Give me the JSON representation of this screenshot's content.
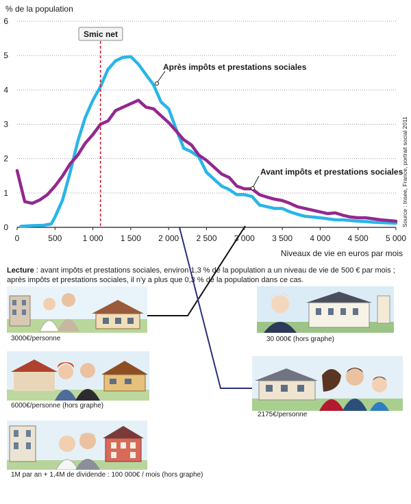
{
  "chart_data": {
    "type": "line",
    "ylabel": "% de la population",
    "xlabel": "Niveaux de vie en euros par mois",
    "xlim": [
      0,
      5000
    ],
    "ylim": [
      0,
      6
    ],
    "xticks": [
      0,
      500,
      1000,
      1500,
      2000,
      2500,
      3000,
      3500,
      4000,
      4500,
      5000
    ],
    "xtick_labels": [
      "0",
      "500",
      "1 000",
      "1 500",
      "2 000",
      "2 500",
      "3 000",
      "3 500",
      "4 000",
      "4 500",
      "5 000"
    ],
    "yticks": [
      0,
      1,
      2,
      3,
      4,
      5,
      6
    ],
    "ytick_labels": [
      "0",
      "1",
      "2",
      "3",
      "4",
      "5",
      "6"
    ],
    "grid": "horizontal dotted",
    "series": [
      {
        "name": "Après impôts et prestations sociales",
        "color": "#29b5e8",
        "x": [
          50,
          200,
          350,
          450,
          500,
          600,
          700,
          800,
          900,
          1000,
          1100,
          1200,
          1300,
          1400,
          1500,
          1600,
          1700,
          1800,
          1900,
          2000,
          2100,
          2200,
          2300,
          2400,
          2500,
          2600,
          2700,
          2800,
          2900,
          3000,
          3100,
          3200,
          3300,
          3400,
          3500,
          3600,
          3700,
          3800,
          3900,
          4000,
          4100,
          4200,
          4300,
          4400,
          4500,
          4600,
          4700,
          4800,
          4900,
          5000
        ],
        "y": [
          0.03,
          0.05,
          0.06,
          0.1,
          0.3,
          0.8,
          1.6,
          2.5,
          3.2,
          3.7,
          4.1,
          4.6,
          4.85,
          4.95,
          4.97,
          4.75,
          4.45,
          4.15,
          3.65,
          3.45,
          2.85,
          2.3,
          2.2,
          2.05,
          1.6,
          1.4,
          1.2,
          1.1,
          0.95,
          0.95,
          0.9,
          0.65,
          0.6,
          0.55,
          0.55,
          0.45,
          0.38,
          0.32,
          0.3,
          0.28,
          0.25,
          0.22,
          0.22,
          0.2,
          0.18,
          0.17,
          0.15,
          0.14,
          0.13,
          0.12
        ]
      },
      {
        "name": "Avant impôts et prestations sociales",
        "color": "#93288e",
        "x": [
          0,
          100,
          200,
          300,
          400,
          500,
          600,
          700,
          800,
          900,
          1000,
          1100,
          1200,
          1300,
          1400,
          1500,
          1600,
          1700,
          1800,
          1900,
          2000,
          2100,
          2200,
          2300,
          2400,
          2500,
          2600,
          2700,
          2800,
          2900,
          3000,
          3100,
          3200,
          3300,
          3400,
          3500,
          3600,
          3700,
          3800,
          3900,
          4000,
          4100,
          4200,
          4300,
          4400,
          4500,
          4600,
          4700,
          4800,
          4900,
          5000
        ],
        "y": [
          1.65,
          0.75,
          0.7,
          0.8,
          0.95,
          1.2,
          1.5,
          1.85,
          2.1,
          2.45,
          2.7,
          3.0,
          3.1,
          3.4,
          3.5,
          3.6,
          3.7,
          3.5,
          3.45,
          3.25,
          3.05,
          2.8,
          2.55,
          2.4,
          2.1,
          1.95,
          1.75,
          1.55,
          1.45,
          1.2,
          1.12,
          1.12,
          0.95,
          0.88,
          0.82,
          0.78,
          0.7,
          0.6,
          0.55,
          0.5,
          0.45,
          0.4,
          0.42,
          0.35,
          0.3,
          0.28,
          0.28,
          0.25,
          0.22,
          0.2,
          0.18
        ]
      }
    ],
    "vline": {
      "x": 1100,
      "label": "Smic net",
      "color": "#d0102a"
    },
    "annotations": [
      {
        "text": "Après impôts et prestations sociales",
        "x": 1850,
        "y": 4.2
      },
      {
        "text": "Avant impôts et prestations sociales",
        "x": 3100,
        "y": 1.15
      }
    ],
    "source_text": "Source : Insee, France, portrait social 2011"
  },
  "lecture": {
    "bold": "Lecture",
    "line1": " : avant impôts et prestations sociales, environ 1,3 % de la population a un niveau de vie de 500 € par mois ;",
    "line2": "après impôts et prestations sociales, il n'y a plus que 0,3 % de la population dans ce cas."
  },
  "captions": {
    "c1": "3000€/personne",
    "c2": "30 000€ (hors graphe)",
    "c3": "6000€/personne (hors graphe)",
    "c4": "2175€/personne",
    "c5": "1M par an + 1,4M de dividende : 100 000€ / mois (hors graphe)"
  },
  "colors": {
    "blue": "#29b5e8",
    "purple": "#93288e",
    "red": "#d0102a",
    "connector_black": "#111111",
    "connector_navy": "#2a2f7a"
  }
}
